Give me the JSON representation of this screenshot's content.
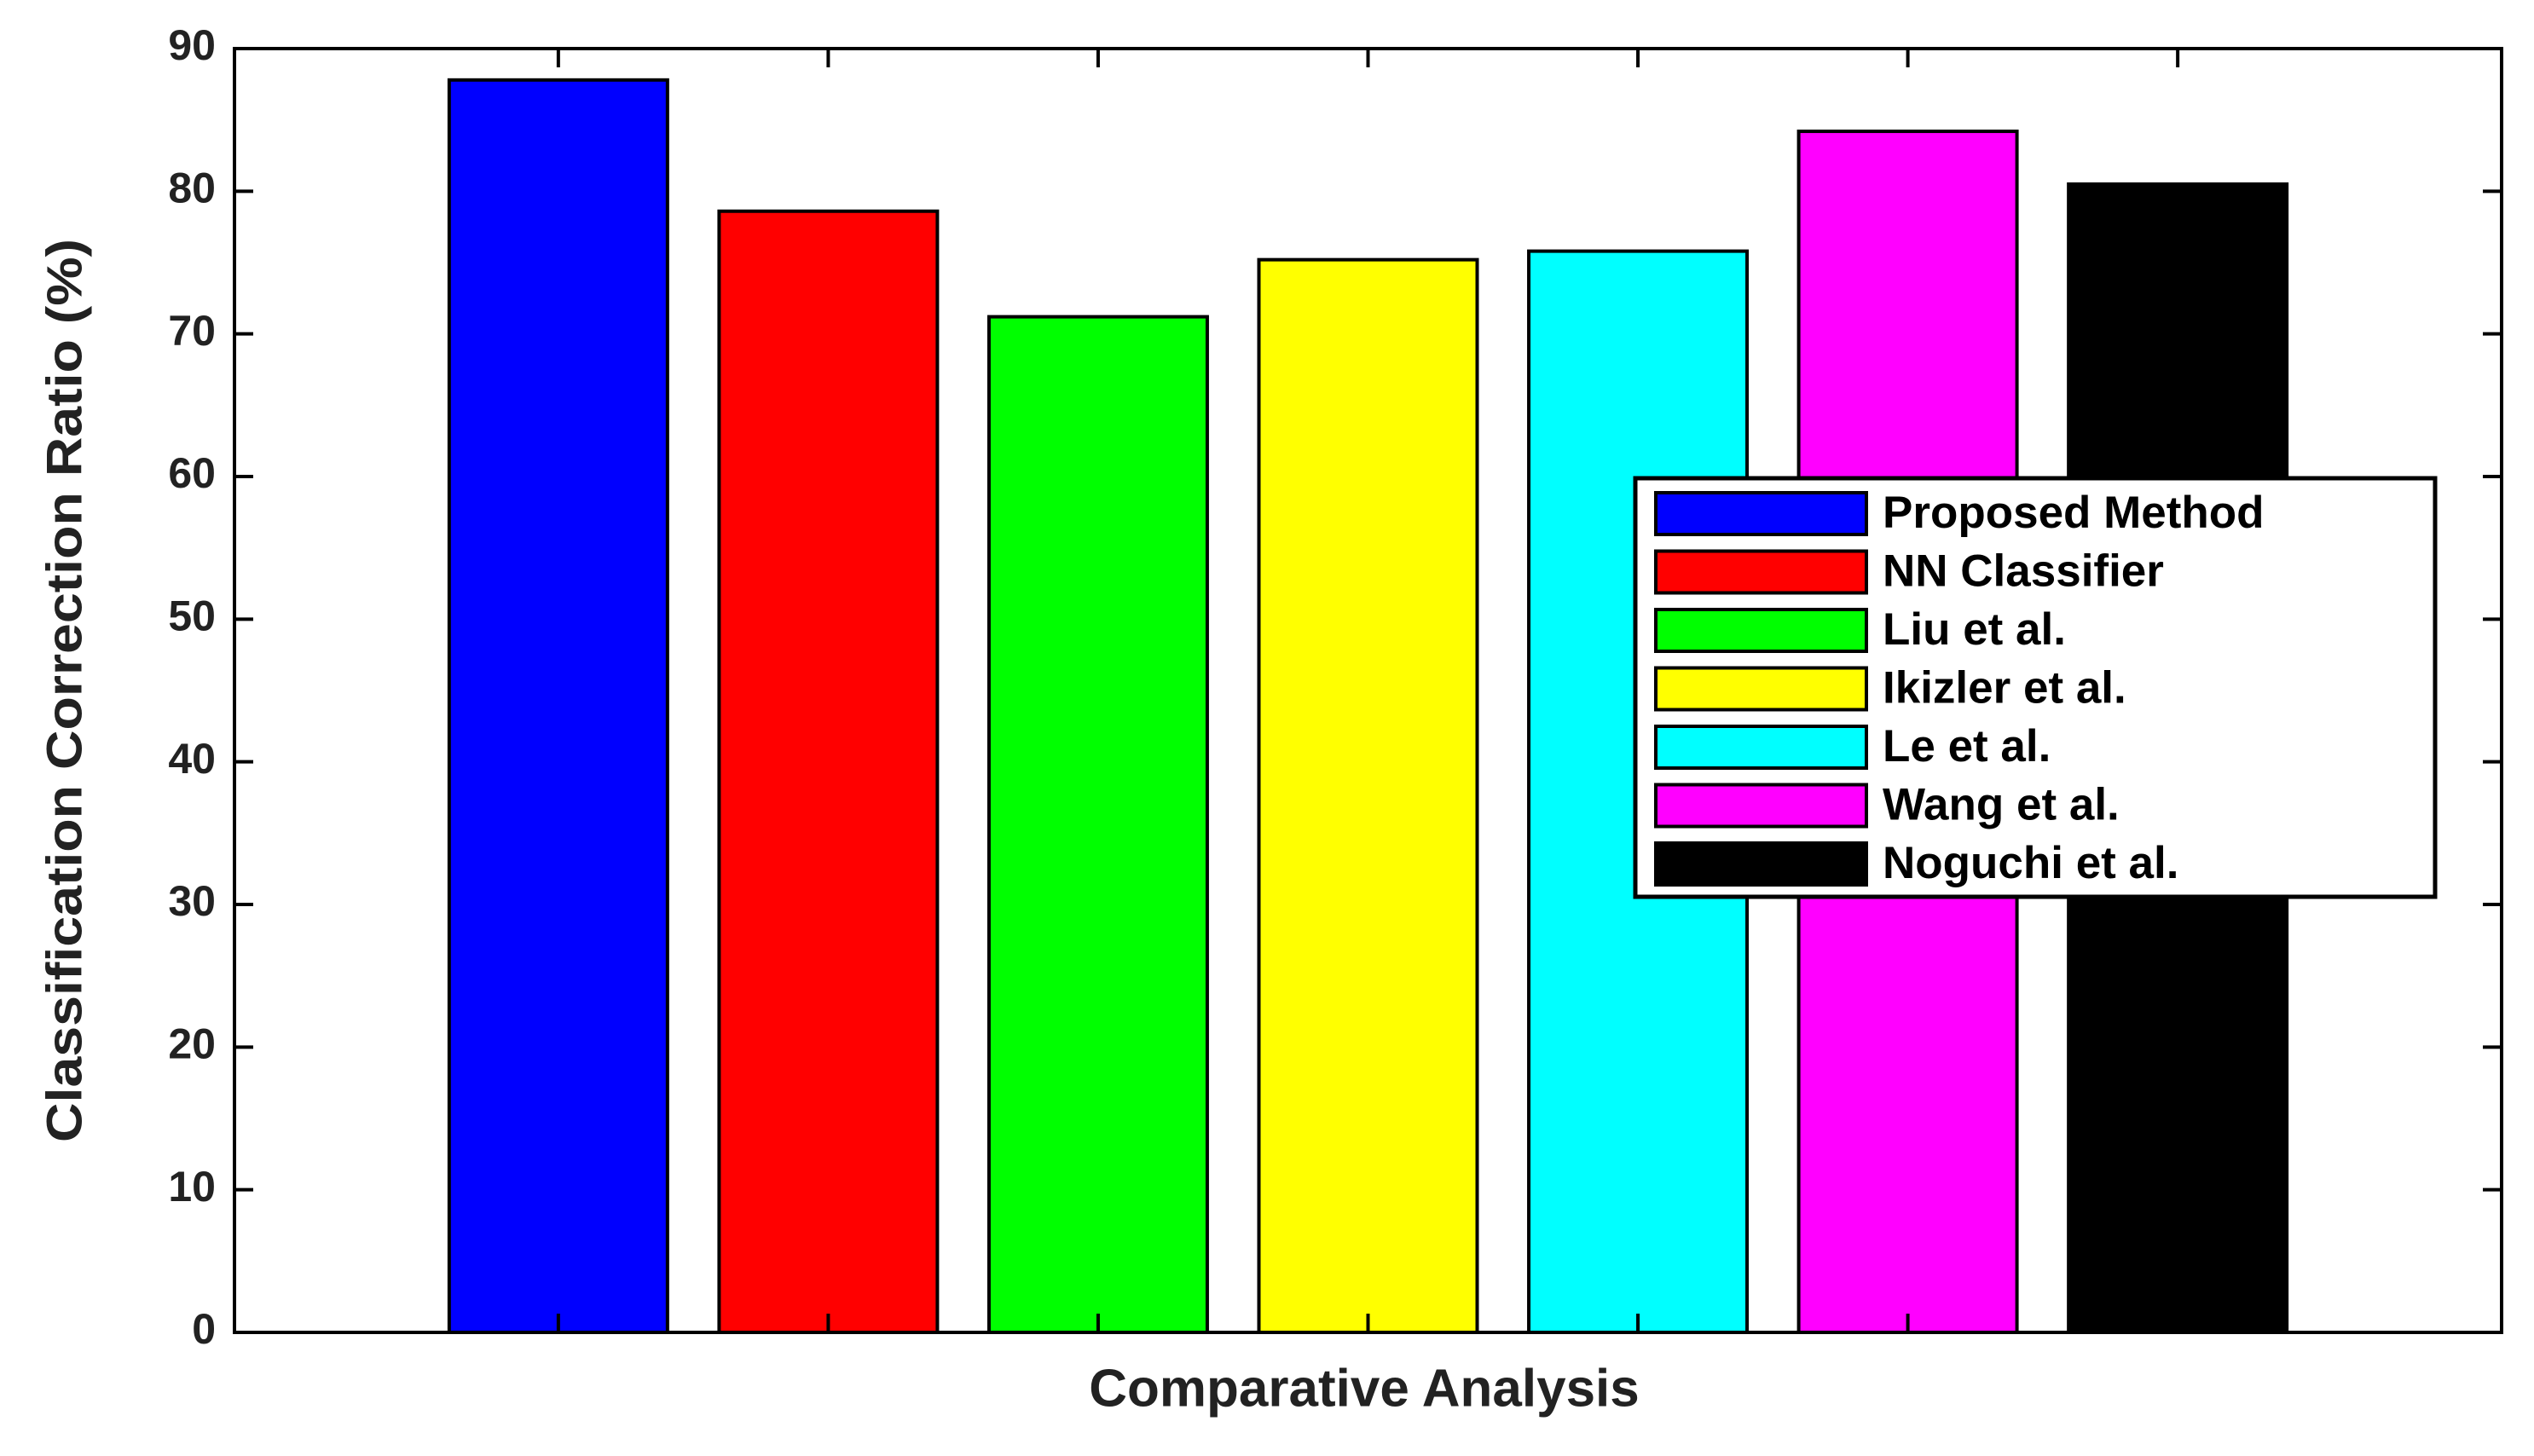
{
  "chart_data": {
    "type": "bar",
    "xlabel": "Comparative Analysis",
    "ylabel": "Classification Correction Ratio (%)",
    "series": [
      {
        "name": "Proposed Method",
        "color": "#0000ff",
        "values": [
          87.8
        ]
      },
      {
        "name": "NN Classifier",
        "color": "#ff0000",
        "values": [
          78.6
        ]
      },
      {
        "name": "Liu et al.",
        "color": "#00ff00",
        "values": [
          71.2
        ]
      },
      {
        "name": "Ikizler et al.",
        "color": "#ffff00",
        "values": [
          75.2
        ]
      },
      {
        "name": "Le et al.",
        "color": "#00ffff",
        "values": [
          75.8
        ]
      },
      {
        "name": "Wang et al.",
        "color": "#ff00ff",
        "values": [
          84.2
        ]
      },
      {
        "name": "Noguchi et al.",
        "color": "#000000",
        "values": [
          80.5
        ]
      }
    ],
    "ylim": [
      0,
      90
    ],
    "yticks": [
      0,
      10,
      20,
      30,
      40,
      50,
      60,
      70,
      80,
      90
    ],
    "grid": false,
    "legend_position": "right"
  }
}
